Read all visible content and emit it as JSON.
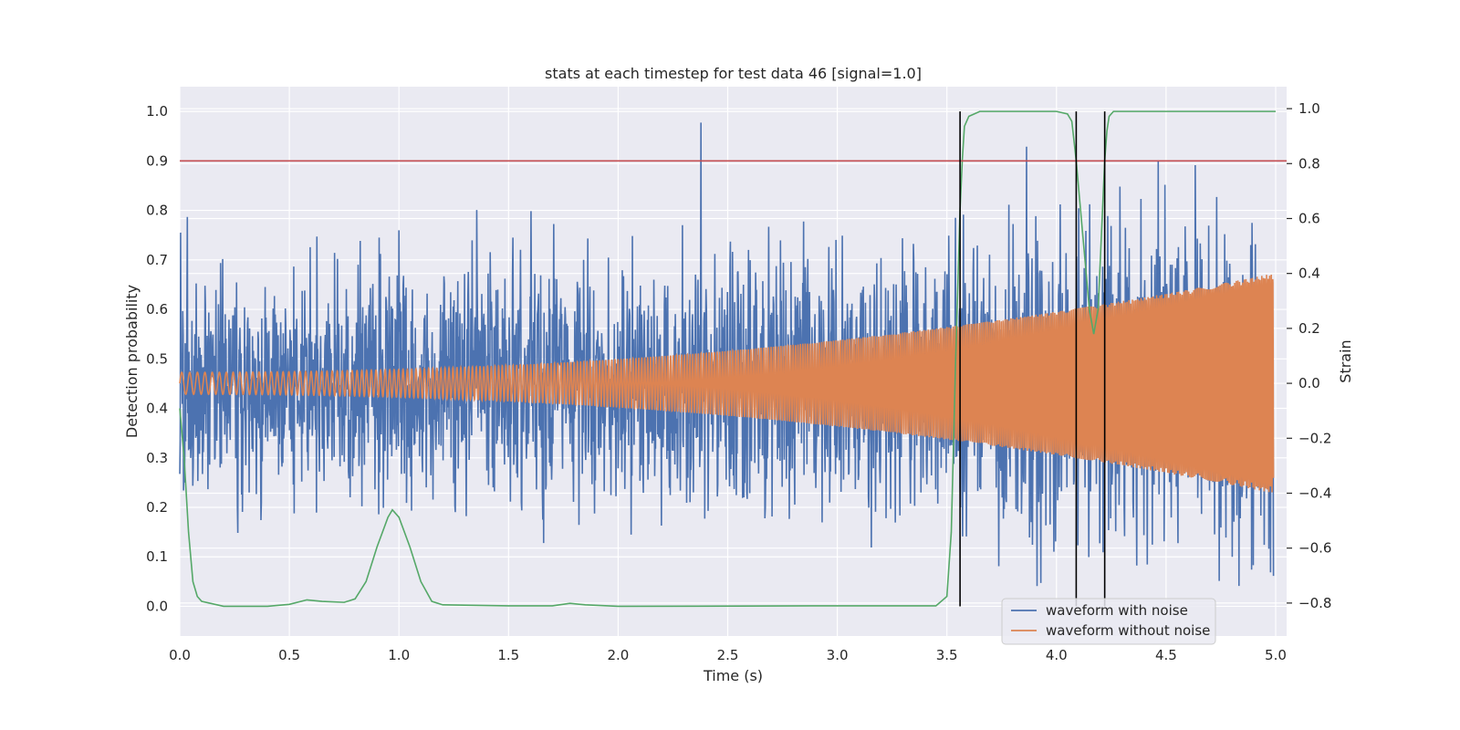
{
  "chart_data": {
    "type": "line",
    "title": "stats at each timestep for test data 46 [signal=1.0]",
    "xlabel": "Time (s)",
    "ylabel_left": "Detection probability",
    "ylabel_right": "Strain",
    "xlim": [
      0.0,
      5.05
    ],
    "ylim_left": [
      -0.06,
      1.05
    ],
    "ylim_right": [
      -0.92,
      1.08
    ],
    "x_ticks": [
      "0.0",
      "0.5",
      "1.0",
      "1.5",
      "2.0",
      "2.5",
      "3.0",
      "3.5",
      "4.0",
      "4.5",
      "5.0"
    ],
    "y_ticks_left": [
      "0.0",
      "0.1",
      "0.2",
      "0.3",
      "0.4",
      "0.5",
      "0.6",
      "0.7",
      "0.8",
      "0.9",
      "1.0"
    ],
    "y_ticks_right": [
      "−0.8",
      "−0.6",
      "−0.4",
      "−0.2",
      "0.0",
      "0.2",
      "0.4",
      "0.6",
      "0.8",
      "1.0"
    ],
    "grid": true,
    "legend_position": "lower-right",
    "threshold": {
      "value": 0.9,
      "color": "#c44e52"
    },
    "detection_markers": [
      3.56,
      4.09,
      4.22
    ],
    "series": [
      {
        "name": "waveform with noise",
        "axis": "right",
        "color": "#4c72b0",
        "noise_amplitude": 0.38,
        "chirp_amplitude_start": 0.04,
        "chirp_amplitude_end": 0.4
      },
      {
        "name": "waveform without noise",
        "axis": "right",
        "color": "#dd8452",
        "amplitude_start": 0.04,
        "amplitude_end": 0.4,
        "frequency_start_hz": 27,
        "frequency_end_hz": 140
      },
      {
        "name": "",
        "axis": "left",
        "color": "#55a868",
        "x": [
          0.0,
          0.02,
          0.04,
          0.06,
          0.08,
          0.1,
          0.2,
          0.4,
          0.5,
          0.58,
          0.65,
          0.75,
          0.8,
          0.85,
          0.9,
          0.95,
          0.97,
          1.0,
          1.05,
          1.1,
          1.15,
          1.2,
          1.5,
          1.7,
          1.78,
          1.85,
          2.0,
          3.0,
          3.45,
          3.5,
          3.52,
          3.54,
          3.56,
          3.57,
          3.58,
          3.6,
          3.65,
          3.7,
          3.8,
          4.0,
          4.05,
          4.07,
          4.09,
          4.11,
          4.13,
          4.15,
          4.17,
          4.19,
          4.2,
          4.21,
          4.22,
          4.23,
          4.24,
          4.26,
          4.3,
          4.5,
          5.0
        ],
        "y": [
          0.4,
          0.3,
          0.15,
          0.05,
          0.02,
          0.01,
          0.0,
          0.0,
          0.004,
          0.013,
          0.01,
          0.008,
          0.015,
          0.05,
          0.12,
          0.18,
          0.195,
          0.18,
          0.12,
          0.05,
          0.01,
          0.003,
          0.001,
          0.001,
          0.006,
          0.003,
          0.0,
          0.001,
          0.001,
          0.02,
          0.15,
          0.5,
          0.8,
          0.9,
          0.97,
          0.99,
          1.0,
          1.0,
          1.0,
          1.0,
          0.995,
          0.98,
          0.9,
          0.8,
          0.7,
          0.6,
          0.55,
          0.6,
          0.7,
          0.8,
          0.9,
          0.96,
          0.99,
          1.0,
          1.0,
          1.0,
          1.0
        ]
      }
    ]
  }
}
